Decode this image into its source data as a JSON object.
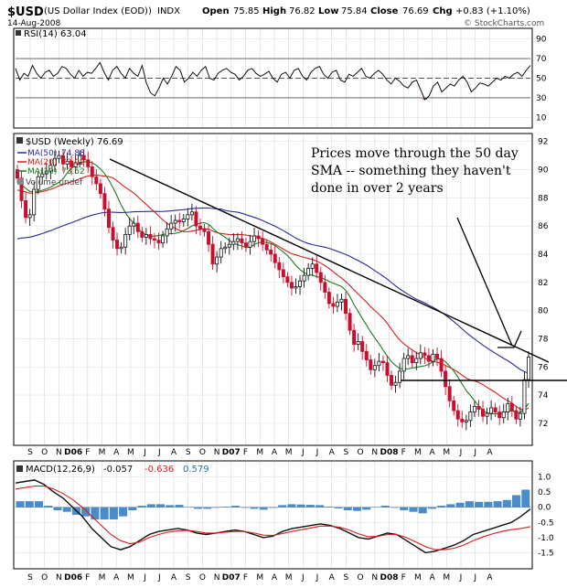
{
  "header": {
    "symbol": "$USD",
    "description": "(US Dollar Index (EOD))",
    "exchange": "INDX",
    "date": "14-Aug-2008",
    "open_label": "Open",
    "open": "75.85",
    "high_label": "High",
    "high": "76.82",
    "low_label": "Low",
    "low": "75.84",
    "close_label": "Close",
    "close": "76.69",
    "chg_label": "Chg",
    "chg": "+0.83 (+1.10%)",
    "watermark": "© StockCharts.com"
  },
  "chart_data": [
    {
      "type": "line",
      "panel": "rsi",
      "label": "RSI(14) 63.04",
      "ylim": [
        0,
        100
      ],
      "y_ticks": [
        90,
        70,
        50,
        30,
        10
      ],
      "reference_lines": [
        70,
        50,
        30
      ],
      "series": [
        {
          "values": [
            60,
            48,
            55,
            52,
            63,
            55,
            50,
            56,
            58,
            52,
            55,
            62,
            60,
            54,
            50,
            58,
            52,
            56,
            55,
            60,
            66,
            56,
            48,
            58,
            62,
            55,
            50,
            60,
            55,
            52,
            63,
            45,
            35,
            32,
            40,
            50,
            44,
            52,
            62,
            58,
            46,
            50,
            56,
            52,
            58,
            62,
            50,
            48,
            55,
            58,
            60,
            56,
            54,
            48,
            52,
            58,
            60,
            55,
            52,
            54,
            57,
            50,
            46,
            54,
            56,
            50,
            58,
            60,
            52,
            48,
            56,
            60,
            62,
            54,
            50,
            56,
            58,
            48,
            46,
            54,
            52,
            56,
            60,
            52,
            50,
            55,
            58,
            54,
            48,
            44,
            50,
            47,
            42,
            40,
            46,
            48,
            38,
            28,
            32,
            42,
            46,
            36,
            40,
            44,
            42,
            48,
            52,
            46,
            36,
            40,
            45,
            44,
            42,
            46,
            50,
            48,
            52,
            50,
            54,
            56,
            52,
            58,
            63
          ]
        }
      ]
    },
    {
      "type": "candlestick",
      "panel": "price",
      "title": "$USD (Weekly) 76.69",
      "ylim": [
        70.5,
        92.5
      ],
      "y_ticks": [
        92,
        90,
        88,
        86,
        84,
        82,
        80,
        78,
        76,
        74,
        72
      ],
      "close": [
        89.4,
        87.8,
        86.6,
        86.8,
        88.6,
        89.5,
        89.7,
        89.9,
        90.3,
        90.8,
        91.0,
        90.4,
        90.6,
        90.2,
        90.5,
        91.0,
        90.7,
        90.2,
        89.5,
        89.0,
        88.3,
        87.2,
        85.9,
        85.0,
        84.4,
        84.5,
        85.4,
        86.0,
        86.2,
        85.6,
        85.2,
        85.4,
        85.1,
        85.0,
        84.8,
        85.3,
        85.8,
        86.2,
        86.4,
        86.3,
        86.5,
        86.8,
        87.0,
        86.0,
        85.8,
        85.6,
        84.7,
        83.3,
        83.8,
        84.4,
        84.5,
        84.7,
        84.9,
        85.1,
        84.8,
        84.5,
        84.9,
        85.3,
        85.1,
        84.7,
        84.3,
        84.0,
        83.4,
        82.9,
        82.4,
        82.0,
        81.6,
        81.7,
        82.1,
        82.5,
        83.0,
        83.3,
        82.7,
        82.0,
        81.3,
        80.5,
        80.3,
        80.6,
        80.8,
        79.8,
        78.6,
        77.6,
        77.8,
        77.1,
        76.5,
        75.8,
        76.1,
        76.4,
        76.3,
        75.4,
        74.7,
        74.9,
        75.7,
        76.6,
        76.8,
        76.3,
        76.6,
        77.0,
        76.8,
        76.4,
        76.9,
        76.6,
        75.7,
        74.6,
        73.6,
        72.9,
        72.3,
        72.1,
        72.2,
        72.8,
        73.2,
        73.0,
        72.5,
        72.7,
        73.1,
        72.8,
        72.4,
        72.8,
        73.4,
        72.9,
        72.3,
        72.7,
        75.1,
        76.7
      ],
      "series": [
        {
          "name": "MA(50)",
          "latest": "74.88",
          "color": "#2a2a9c"
        },
        {
          "name": "MA(20)",
          "latest": "73.02",
          "color": "#d81e1e"
        },
        {
          "name": "MA(10)",
          "latest": "73.52",
          "color": "#1d7a1d"
        }
      ],
      "volume_note": "Volume undef",
      "annotation_lines": [
        "Prices move through the 50 day",
        "SMA -- something they haven't",
        "done in over 2 years"
      ]
    },
    {
      "type": "line",
      "panel": "macd",
      "label": "MACD(12,26,9)",
      "values_text": [
        "-0.057",
        "-0.636",
        "0.579"
      ],
      "ylim": [
        -2.0,
        1.5
      ],
      "y_ticks": [
        1.0,
        0.5,
        0.0,
        -0.5,
        -1.0,
        -1.5
      ],
      "series": [
        {
          "name": "MACD",
          "color": "#111111",
          "values": [
            0.8,
            0.85,
            0.9,
            0.75,
            0.5,
            0.3,
            0.0,
            -0.3,
            -0.7,
            -1.0,
            -1.3,
            -1.4,
            -1.3,
            -1.1,
            -0.9,
            -0.8,
            -0.75,
            -0.7,
            -0.75,
            -0.85,
            -0.9,
            -0.85,
            -0.8,
            -0.75,
            -0.8,
            -0.9,
            -1.0,
            -0.95,
            -0.8,
            -0.7,
            -0.65,
            -0.6,
            -0.55,
            -0.6,
            -0.7,
            -0.85,
            -1.0,
            -1.05,
            -0.95,
            -0.85,
            -0.9,
            -1.1,
            -1.3,
            -1.5,
            -1.45,
            -1.35,
            -1.25,
            -1.1,
            -0.9,
            -0.8,
            -0.7,
            -0.6,
            -0.5,
            -0.3,
            -0.06
          ]
        },
        {
          "name": "Signal",
          "color": "#d81e1e",
          "values": [
            0.6,
            0.65,
            0.7,
            0.7,
            0.6,
            0.45,
            0.25,
            0.0,
            -0.3,
            -0.6,
            -0.9,
            -1.1,
            -1.2,
            -1.15,
            -1.0,
            -0.9,
            -0.82,
            -0.78,
            -0.76,
            -0.8,
            -0.85,
            -0.85,
            -0.82,
            -0.8,
            -0.8,
            -0.85,
            -0.92,
            -0.93,
            -0.87,
            -0.8,
            -0.74,
            -0.68,
            -0.62,
            -0.62,
            -0.66,
            -0.75,
            -0.88,
            -0.97,
            -0.96,
            -0.9,
            -0.9,
            -1.0,
            -1.15,
            -1.3,
            -1.4,
            -1.4,
            -1.35,
            -1.25,
            -1.1,
            -0.98,
            -0.88,
            -0.8,
            -0.74,
            -0.7,
            -0.64
          ]
        }
      ],
      "histogram": [
        0.2,
        0.2,
        0.2,
        0.05,
        -0.1,
        -0.15,
        -0.25,
        -0.3,
        -0.4,
        -0.4,
        -0.4,
        -0.3,
        -0.1,
        0.05,
        0.1,
        0.1,
        0.07,
        0.08,
        0.01,
        -0.05,
        -0.05,
        0.0,
        0.02,
        0.05,
        0.0,
        -0.05,
        -0.08,
        -0.02,
        0.07,
        0.1,
        0.09,
        0.08,
        0.07,
        0.02,
        -0.04,
        -0.1,
        -0.12,
        -0.08,
        0.01,
        0.05,
        0.0,
        -0.1,
        -0.15,
        -0.2,
        -0.05,
        0.05,
        0.1,
        0.15,
        0.2,
        0.18,
        0.18,
        0.2,
        0.24,
        0.4,
        0.58
      ]
    }
  ],
  "x_axis_labels": [
    "S",
    "O",
    "N",
    "D06",
    "F",
    "M",
    "A",
    "M",
    "J",
    "J",
    "A",
    "S",
    "O",
    "N",
    "D07",
    "F",
    "M",
    "A",
    "M",
    "J",
    "J",
    "A",
    "S",
    "O",
    "N",
    "D08",
    "F",
    "M",
    "A",
    "M",
    "J",
    "J",
    "A"
  ]
}
